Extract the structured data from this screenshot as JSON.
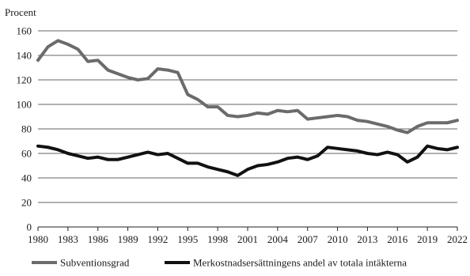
{
  "chart_data": {
    "type": "line",
    "ylabel": "Procent",
    "xlabel": "",
    "ylim": [
      0,
      160
    ],
    "yticks": [
      0,
      20,
      40,
      60,
      80,
      100,
      120,
      140,
      160
    ],
    "xlim": [
      1980,
      2022
    ],
    "xticks": [
      1980,
      1983,
      1986,
      1989,
      1992,
      1995,
      1998,
      2001,
      2004,
      2007,
      2010,
      2013,
      2016,
      2019,
      2022
    ],
    "grid": "horizontal",
    "legend": "bottom",
    "x": [
      1980,
      1981,
      1982,
      1983,
      1984,
      1985,
      1986,
      1987,
      1988,
      1989,
      1990,
      1991,
      1992,
      1993,
      1994,
      1995,
      1996,
      1997,
      1998,
      1999,
      2000,
      2001,
      2002,
      2003,
      2004,
      2005,
      2006,
      2007,
      2008,
      2009,
      2010,
      2011,
      2012,
      2013,
      2014,
      2015,
      2016,
      2017,
      2018,
      2019,
      2020,
      2021,
      2022
    ],
    "series": [
      {
        "name": "Subventionsgrad",
        "color": "#6b6b6b",
        "values": [
          136,
          147,
          152,
          149,
          145,
          135,
          136,
          128,
          125,
          122,
          120,
          121,
          129,
          128,
          126,
          108,
          104,
          98,
          98,
          91,
          90,
          91,
          93,
          92,
          95,
          94,
          95,
          88,
          89,
          90,
          91,
          90,
          87,
          86,
          84,
          82,
          79,
          77,
          82,
          85,
          85,
          85,
          87
        ]
      },
      {
        "name": "Merkostnadsersättningens andel av totala intäkterna",
        "color": "#111111",
        "values": [
          66,
          65,
          63,
          60,
          58,
          56,
          57,
          55,
          55,
          57,
          59,
          61,
          59,
          60,
          56,
          52,
          52,
          49,
          47,
          45,
          42,
          47,
          50,
          51,
          53,
          56,
          57,
          55,
          58,
          65,
          64,
          63,
          62,
          60,
          59,
          61,
          59,
          53,
          57,
          66,
          64,
          63,
          65
        ]
      }
    ]
  }
}
